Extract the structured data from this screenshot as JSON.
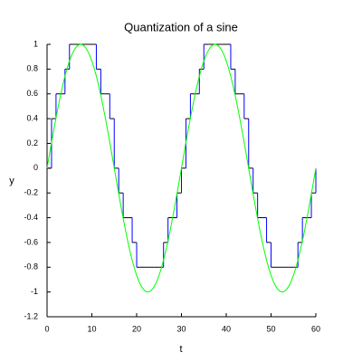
{
  "chart_data": {
    "type": "line",
    "title": "Quantization of a sine",
    "x_label": "t",
    "y_label": "y",
    "xlim": [
      0,
      60
    ],
    "ylim": [
      -1.2,
      1
    ],
    "xticks": [
      0,
      10,
      20,
      30,
      40,
      50,
      60
    ],
    "yticks": [
      -1.2,
      -1,
      -0.8,
      -0.6,
      -0.4,
      -0.2,
      0,
      0.2,
      0.4,
      0.6,
      0.8,
      1
    ],
    "series": [
      {
        "style": "step",
        "color": "#0000ff",
        "step_color": "#000000",
        "x": [
          0,
          1,
          2,
          3,
          4,
          5,
          6,
          7,
          8,
          9,
          10,
          11,
          12,
          13,
          14,
          15,
          16,
          17,
          18,
          19,
          20,
          21,
          22,
          23,
          24,
          25,
          26,
          27,
          28,
          29,
          30,
          31,
          32,
          33,
          34,
          35,
          36,
          37,
          38,
          39,
          40,
          41,
          42,
          43,
          44,
          45,
          46,
          47,
          48,
          49,
          50,
          51,
          52,
          53,
          54,
          55,
          56,
          57,
          58,
          59,
          60
        ],
        "values": [
          0,
          0.4,
          0.6,
          0.6,
          0.8,
          1,
          1,
          1,
          1,
          1,
          1,
          0.8,
          0.6,
          0.6,
          0.4,
          0,
          -0.2,
          -0.4,
          -0.4,
          -0.6,
          -0.8,
          -0.8,
          -0.8,
          -0.8,
          -0.8,
          -0.8,
          -0.6,
          -0.4,
          -0.4,
          -0.2,
          0,
          0.4,
          0.6,
          0.6,
          0.8,
          1,
          1,
          1,
          1,
          1,
          1,
          0.8,
          0.6,
          0.6,
          0.4,
          0,
          -0.2,
          -0.4,
          -0.4,
          -0.6,
          -0.8,
          -0.8,
          -0.8,
          -0.8,
          -0.8,
          -0.8,
          -0.6,
          -0.4,
          -0.4,
          -0.2,
          0
        ]
      },
      {
        "style": "line",
        "color": "#00ff00",
        "x": [
          0,
          0.5,
          1,
          1.5,
          2,
          2.5,
          3,
          3.5,
          4,
          4.5,
          5,
          5.5,
          6,
          6.5,
          7,
          7.5,
          8,
          8.5,
          9,
          9.5,
          10,
          10.5,
          11,
          11.5,
          12,
          12.5,
          13,
          13.5,
          14,
          14.5,
          15,
          15.5,
          16,
          16.5,
          17,
          17.5,
          18,
          18.5,
          19,
          19.5,
          20,
          20.5,
          21,
          21.5,
          22,
          22.5,
          23,
          23.5,
          24,
          24.5,
          25,
          25.5,
          26,
          26.5,
          27,
          27.5,
          28,
          28.5,
          29,
          29.5,
          30,
          30.5,
          31,
          31.5,
          32,
          32.5,
          33,
          33.5,
          34,
          34.5,
          35,
          35.5,
          36,
          36.5,
          37,
          37.5,
          38,
          38.5,
          39,
          39.5,
          40,
          40.5,
          41,
          41.5,
          42,
          42.5,
          43,
          43.5,
          44,
          44.5,
          45,
          45.5,
          46,
          46.5,
          47,
          47.5,
          48,
          48.5,
          49,
          49.5,
          50,
          50.5,
          51,
          51.5,
          52,
          52.5,
          53,
          53.5,
          54,
          54.5,
          55,
          55.5,
          56,
          56.5,
          57,
          57.5,
          58,
          58.5,
          59,
          59.5,
          60
        ],
        "values": [
          0,
          0.1045,
          0.2079,
          0.309,
          0.4067,
          0.5,
          0.5878,
          0.6691,
          0.7431,
          0.809,
          0.866,
          0.9135,
          0.9511,
          0.9781,
          0.9945,
          1,
          0.9945,
          0.9781,
          0.9511,
          0.9135,
          0.866,
          0.809,
          0.7431,
          0.6691,
          0.5878,
          0.5,
          0.4067,
          0.309,
          0.2079,
          0.1045,
          0,
          -0.1045,
          -0.2079,
          -0.309,
          -0.4067,
          -0.5,
          -0.5878,
          -0.6691,
          -0.7431,
          -0.809,
          -0.866,
          -0.9135,
          -0.9511,
          -0.9781,
          -0.9945,
          -1,
          -0.9945,
          -0.9781,
          -0.9511,
          -0.9135,
          -0.866,
          -0.809,
          -0.7431,
          -0.6691,
          -0.5878,
          -0.5,
          -0.4067,
          -0.309,
          -0.2079,
          -0.1045,
          0,
          0.1045,
          0.2079,
          0.309,
          0.4067,
          0.5,
          0.5878,
          0.6691,
          0.7431,
          0.809,
          0.866,
          0.9135,
          0.9511,
          0.9781,
          0.9945,
          1,
          0.9945,
          0.9781,
          0.9511,
          0.9135,
          0.866,
          0.809,
          0.7431,
          0.6691,
          0.5878,
          0.5,
          0.4067,
          0.309,
          0.2079,
          0.1045,
          0,
          -0.1045,
          -0.2079,
          -0.309,
          -0.4067,
          -0.5,
          -0.5878,
          -0.6691,
          -0.7431,
          -0.809,
          -0.866,
          -0.9135,
          -0.9511,
          -0.9781,
          -0.9945,
          -1,
          -0.9945,
          -0.9781,
          -0.9511,
          -0.9135,
          -0.866,
          -0.809,
          -0.7431,
          -0.6691,
          -0.5878,
          -0.5,
          -0.4067,
          -0.309,
          -0.2079,
          -0.1045,
          0
        ]
      }
    ]
  }
}
